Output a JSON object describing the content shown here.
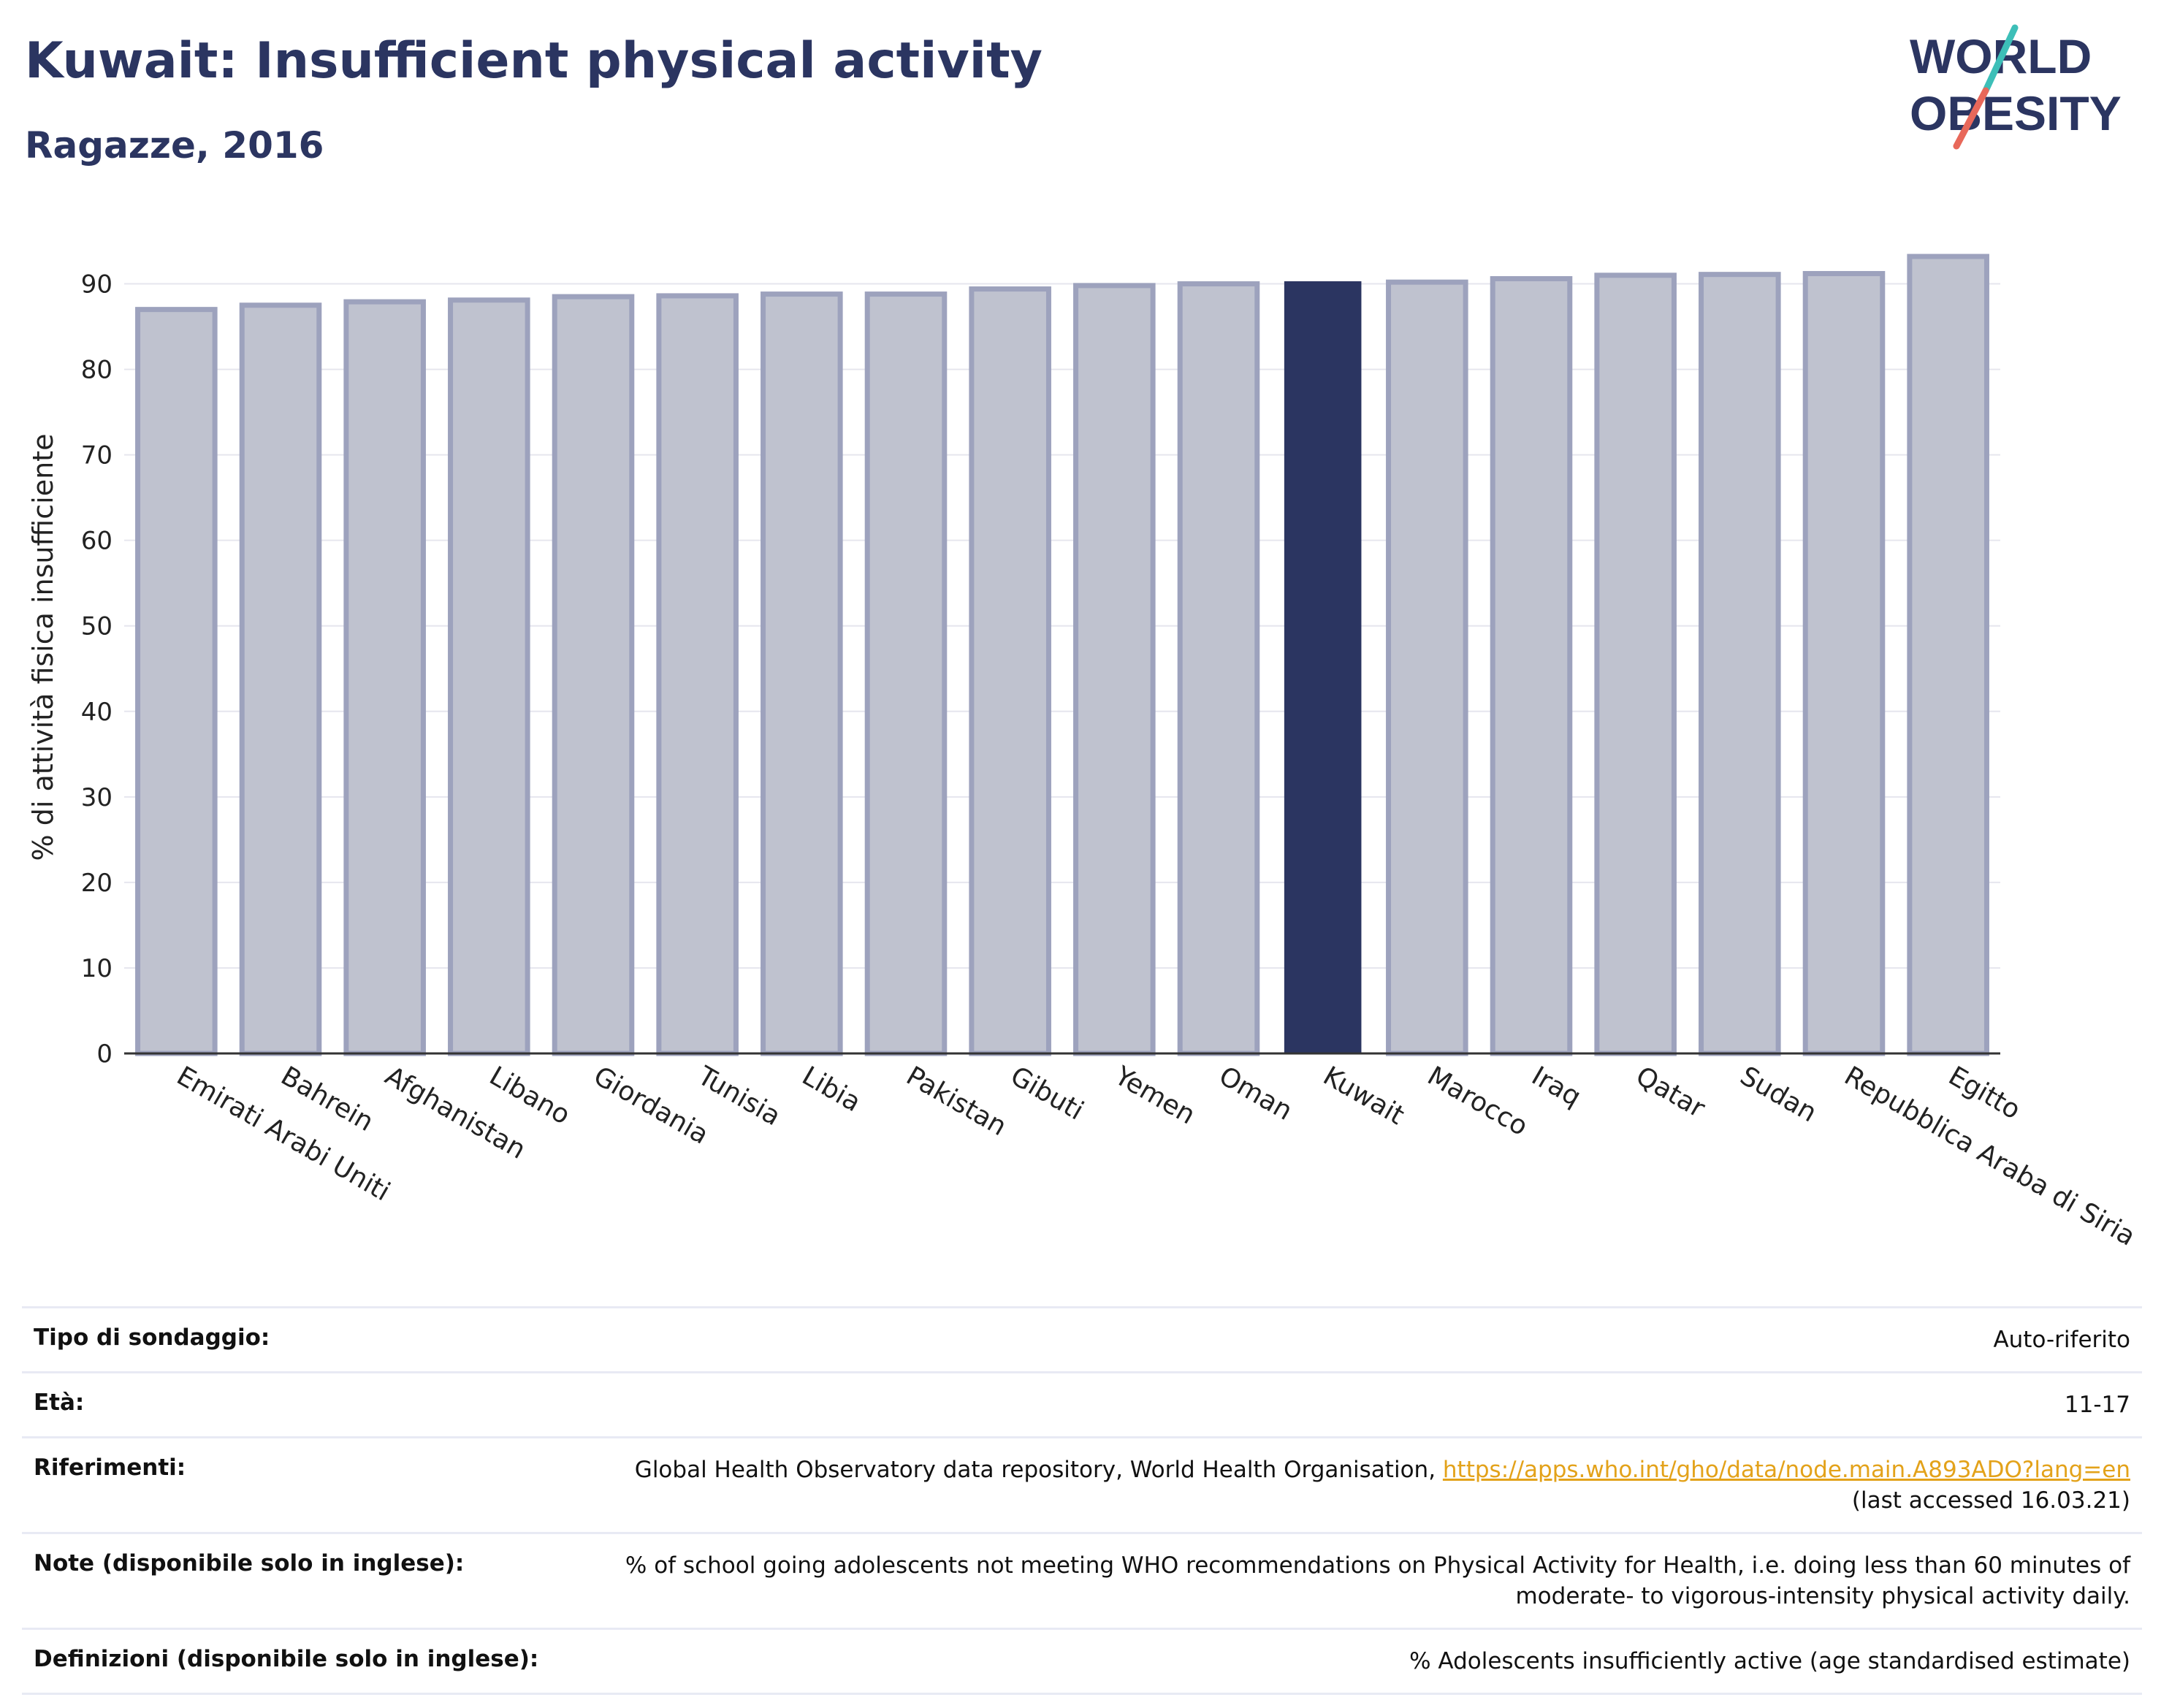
{
  "header": {
    "title": "Kuwait: Insufficient physical activity",
    "subtitle": "Ragazze, 2016"
  },
  "logo": {
    "line1": "WORLD",
    "line2": "OBESITY",
    "colors": {
      "text": "#2b3561",
      "slash_top": "#3dbfb8",
      "slash_bottom": "#e8685a"
    }
  },
  "colors": {
    "highlight": "#2b3561",
    "bar_fill": "#bfc2cf",
    "bar_stroke": "#9da2bd",
    "axis": "#333333",
    "grid": "#e6e6ee"
  },
  "chart_data": {
    "type": "bar",
    "ylabel": "% di attività fisica insufficiente",
    "xlabel": "",
    "ylim": [
      0,
      95
    ],
    "yticks": [
      0,
      10,
      20,
      30,
      40,
      50,
      60,
      70,
      80,
      90
    ],
    "grid": true,
    "highlight": "Kuwait",
    "categories": [
      "Emirati Arabi Uniti",
      "Bahrein",
      "Afghanistan",
      "Libano",
      "Giordania",
      "Tunisia",
      "Libia",
      "Pakistan",
      "Gibuti",
      "Yemen",
      "Oman",
      "Kuwait",
      "Marocco",
      "Iraq",
      "Qatar",
      "Sudan",
      "Repubblica Araba di Siria",
      "Egitto"
    ],
    "values": [
      87.0,
      87.5,
      87.9,
      88.1,
      88.5,
      88.6,
      88.8,
      88.8,
      89.4,
      89.8,
      90.0,
      90.3,
      90.2,
      90.6,
      91.0,
      91.1,
      91.2,
      93.2
    ]
  },
  "info": {
    "rows": [
      {
        "key": "Tipo di sondaggio:",
        "value": "Auto-riferito"
      },
      {
        "key": "Età:",
        "value": "11-17"
      },
      {
        "key": "Riferimenti:",
        "value": "Global Health Observatory data repository, World Health Organisation,",
        "link": "https://apps.who.int/gho/data/node.main.A893ADO?lang=en",
        "value2": "(last accessed 16.03.21)"
      },
      {
        "key": "Note (disponibile solo in inglese):",
        "value": "% of school going adolescents not meeting WHO recommendations on Physical Activity for Health, i.e. doing less than 60 minutes of",
        "value2": "moderate- to vigorous-intensity physical activity daily."
      },
      {
        "key": "Definizioni (disponibile solo in inglese):",
        "value": "% Adolescents insufficiently active (age standardised estimate)"
      }
    ]
  }
}
